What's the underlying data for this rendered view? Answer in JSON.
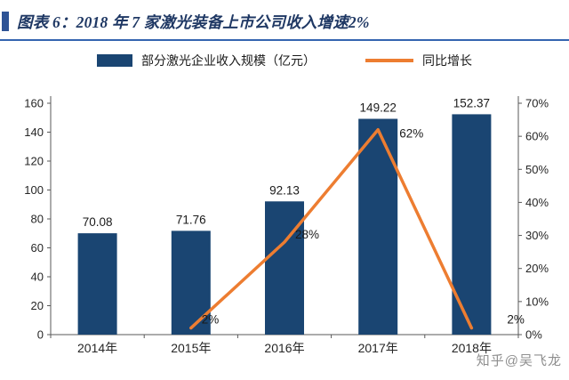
{
  "title": {
    "text": "图表 6：2018 年 7 家激光装备上市公司收入增速2%"
  },
  "legend": [
    {
      "label": "部分激光企业收入规模（亿元）",
      "type": "bar",
      "color": "#1a4572"
    },
    {
      "label": "同比增长",
      "type": "line",
      "color": "#ed7d31"
    }
  ],
  "watermark": "知乎@吴飞龙",
  "colors": {
    "bar": "#1a4572",
    "line": "#ed7d31",
    "title": "#1f3864",
    "title_rule": "#3565b0",
    "axis": "#595959"
  },
  "chart_data": {
    "type": "bar",
    "subtype": "bar+line combo, dual axis",
    "categories": [
      "2014年",
      "2015年",
      "2016年",
      "2017年",
      "2018年"
    ],
    "series": [
      {
        "name": "部分激光企业收入规模（亿元）",
        "type": "bar",
        "axis": "left",
        "color": "#1a4572",
        "values": [
          70.08,
          71.76,
          92.13,
          149.22,
          152.37
        ],
        "labels": [
          "70.08",
          "71.76",
          "92.13",
          "149.22",
          "152.37"
        ]
      },
      {
        "name": "同比增长",
        "type": "line",
        "axis": "right",
        "color": "#ed7d31",
        "values": [
          null,
          2,
          28,
          62,
          2
        ],
        "labels": [
          null,
          "2%",
          "28%",
          "62%",
          "2%"
        ]
      }
    ],
    "left_axis": {
      "min": 0,
      "max": 160,
      "step": 20,
      "ticks": [
        "0",
        "20",
        "40",
        "60",
        "80",
        "100",
        "120",
        "140",
        "160"
      ]
    },
    "right_axis": {
      "min": 0,
      "max": 70,
      "step": 10,
      "ticks": [
        "0%",
        "10%",
        "20%",
        "30%",
        "40%",
        "50%",
        "60%",
        "70%"
      ]
    },
    "grid": false,
    "legend_position": "top"
  }
}
